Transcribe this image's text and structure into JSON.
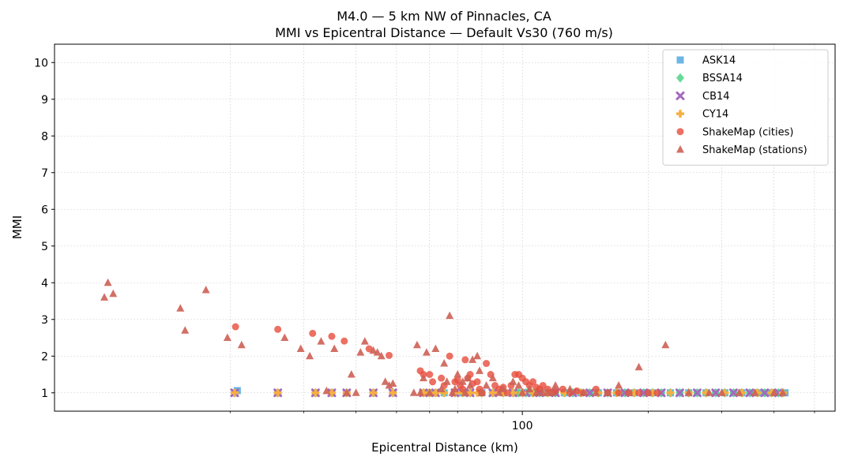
{
  "chart_data": {
    "type": "scatter",
    "title": "M4.0 — 5 km NW of Pinnacles, CA",
    "subtitle": "MMI vs Epicentral Distance — Default Vs30 (760 m/s)",
    "xlabel": "Epicentral Distance (km)",
    "ylabel": "MMI",
    "xscale": "log",
    "xlim": [
      7.6,
      560
    ],
    "ylim": [
      0.5,
      10.5
    ],
    "x_major_ticks": [
      100
    ],
    "x_minor_ticks": [
      20,
      30,
      40,
      50,
      60,
      70,
      80,
      90,
      200,
      300,
      400,
      500
    ],
    "y_ticks": [
      1,
      2,
      3,
      4,
      5,
      6,
      7,
      8,
      9,
      10
    ],
    "grid": true,
    "legend_position": "top-right",
    "series": [
      {
        "name": "ASK14",
        "marker": "square",
        "color": "#5dade2",
        "x": [
          20.5,
          20.8,
          26,
          32,
          35,
          38,
          44,
          49,
          58,
          60,
          62,
          65,
          69,
          72,
          75,
          80,
          85,
          90,
          95,
          98,
          102,
          106,
          110,
          115,
          120,
          126,
          132,
          138,
          145,
          152,
          160,
          168,
          176,
          185,
          195,
          205,
          215,
          226,
          238,
          250,
          262,
          275,
          290,
          305,
          320,
          335,
          350,
          365,
          380,
          395,
          410,
          425
        ],
        "y": [
          1,
          1.06,
          1,
          1,
          1,
          1,
          1,
          1,
          1,
          1,
          1,
          1,
          1,
          1,
          1,
          1,
          1,
          1,
          1,
          1,
          1,
          1,
          1,
          1,
          1,
          1,
          1,
          1,
          1,
          1,
          1,
          1,
          1,
          1,
          1,
          1,
          1,
          1,
          1,
          1,
          1,
          1,
          1,
          1,
          1,
          1,
          1,
          1,
          1,
          1,
          1,
          1
        ]
      },
      {
        "name": "BSSA14",
        "marker": "diamond",
        "color": "#58d68d",
        "x": [
          20.5,
          26,
          32,
          35,
          38,
          44,
          49,
          58,
          60,
          62,
          65,
          69,
          72,
          75,
          80,
          85,
          90,
          95,
          98,
          102,
          106,
          110,
          115,
          120,
          126,
          132,
          138,
          145,
          152,
          160,
          168,
          176,
          185,
          195,
          205,
          215,
          226,
          238,
          250,
          262,
          275,
          290,
          305,
          320,
          335,
          350,
          365,
          380,
          395,
          410,
          420
        ],
        "y": [
          1,
          1,
          1,
          1,
          1,
          1,
          1,
          1,
          1,
          1,
          1,
          1,
          1,
          1,
          1,
          1,
          1,
          1,
          1,
          1,
          1,
          1,
          1,
          1,
          1,
          1,
          1,
          1,
          1,
          1,
          1,
          1,
          1,
          1,
          1,
          1,
          1,
          1,
          1,
          1,
          1,
          1,
          1,
          1,
          1,
          1,
          1,
          1,
          1,
          1,
          1
        ]
      },
      {
        "name": "CB14",
        "marker": "x",
        "color": "#a569bd",
        "x": [
          20.5,
          26,
          32,
          35,
          38,
          44,
          49,
          58,
          62,
          69,
          75,
          85,
          95,
          102,
          110,
          120,
          132,
          145,
          160,
          176,
          195,
          215,
          238,
          262,
          290,
          320,
          350,
          380,
          410
        ],
        "y": [
          1,
          1,
          1,
          1,
          1,
          1,
          1,
          1,
          1,
          1,
          1,
          1,
          1,
          1,
          1,
          1,
          1,
          1,
          1,
          1,
          1,
          1,
          1,
          1,
          1,
          1,
          1,
          1,
          1
        ]
      },
      {
        "name": "CY14",
        "marker": "plus",
        "color": "#f5b041",
        "x": [
          20.5,
          26,
          32,
          35,
          38,
          44,
          49,
          58,
          60,
          62,
          65,
          69,
          72,
          75,
          78,
          80,
          85,
          90,
          95,
          100,
          106,
          115,
          126,
          138,
          152,
          168,
          185,
          205,
          226,
          250,
          275,
          305,
          335,
          365,
          395,
          420
        ],
        "y": [
          1,
          1,
          1,
          1,
          1,
          1,
          1,
          1,
          1,
          1,
          1,
          1,
          1,
          1,
          1,
          1,
          1,
          1,
          1,
          1,
          1,
          1,
          1,
          1,
          1,
          1,
          1,
          1,
          1,
          1,
          1,
          1,
          1,
          1,
          1,
          1
        ]
      },
      {
        "name": "ShakeMap (cities)",
        "marker": "circle",
        "color": "#e74c3c",
        "x": [
          20.6,
          26,
          31.5,
          35,
          37.5,
          43,
          48,
          57,
          58,
          60,
          61,
          64,
          65,
          67,
          69,
          70,
          71,
          72,
          73,
          74,
          75,
          76,
          78,
          79,
          80,
          82,
          84,
          86,
          88,
          90,
          92,
          94,
          96,
          98,
          100,
          102,
          104,
          106,
          108,
          110,
          112,
          115,
          118,
          120,
          125,
          130,
          135,
          140,
          150,
          160,
          170,
          180,
          190,
          200,
          210
        ],
        "y": [
          2.8,
          2.73,
          2.62,
          2.54,
          2.41,
          2.2,
          2.02,
          1.6,
          1.5,
          1.5,
          1.3,
          1.4,
          1.2,
          2.0,
          1.3,
          1.35,
          1.2,
          1.1,
          1.9,
          1.4,
          1.5,
          1.25,
          1.3,
          1.1,
          1.0,
          1.8,
          1.5,
          1.2,
          1.1,
          1.15,
          1.0,
          1.2,
          1.5,
          1.5,
          1.4,
          1.3,
          1.2,
          1.3,
          1.15,
          1.1,
          1.2,
          1.1,
          1.0,
          1.05,
          1.1,
          1.0,
          1.05,
          1.0,
          1.1,
          1.0,
          1.0,
          1.0,
          1.0,
          1.0,
          1.0
        ]
      },
      {
        "name": "ShakeMap (stations)",
        "marker": "triangle",
        "color": "#cd6155",
        "x": [
          10,
          10.2,
          10.5,
          15.2,
          15.6,
          17.5,
          19.7,
          21.3,
          27,
          29.5,
          31,
          33,
          34,
          35.5,
          38,
          39,
          40,
          41,
          42,
          44,
          45,
          46,
          47,
          48,
          49,
          55,
          56,
          57,
          58,
          59,
          60,
          62,
          64,
          65,
          66,
          67,
          68,
          69,
          70,
          72,
          73,
          74,
          75,
          76,
          78,
          79,
          80,
          82,
          85,
          88,
          90,
          95,
          98,
          100,
          104,
          108,
          112,
          115,
          118,
          120,
          130,
          140,
          150,
          160,
          170,
          180,
          190,
          200,
          220,
          250,
          280,
          300,
          330,
          360,
          400,
          420
        ],
        "y": [
          3.6,
          4.0,
          3.7,
          3.3,
          2.7,
          3.8,
          2.5,
          2.3,
          2.5,
          2.2,
          2.0,
          2.4,
          1.05,
          2.2,
          1.0,
          1.5,
          1.0,
          2.1,
          2.4,
          2.15,
          2.1,
          2.0,
          1.3,
          1.2,
          1.25,
          1.0,
          2.3,
          1.0,
          1.4,
          2.1,
          1.0,
          2.2,
          1.1,
          1.8,
          1.3,
          3.1,
          1.0,
          1.1,
          1.5,
          1.3,
          1.0,
          1.4,
          1.2,
          1.9,
          2.0,
          1.6,
          1.0,
          1.2,
          1.4,
          1.0,
          1.1,
          1.3,
          1.2,
          1.0,
          1.1,
          1.0,
          1.0,
          1.0,
          1.0,
          1.2,
          1.1,
          1.0,
          1.0,
          1.0,
          1.2,
          1.0,
          1.7,
          1.0,
          2.3,
          1.0,
          1.0,
          1.0,
          1.0,
          1.0,
          1.0,
          1.0
        ]
      }
    ]
  }
}
